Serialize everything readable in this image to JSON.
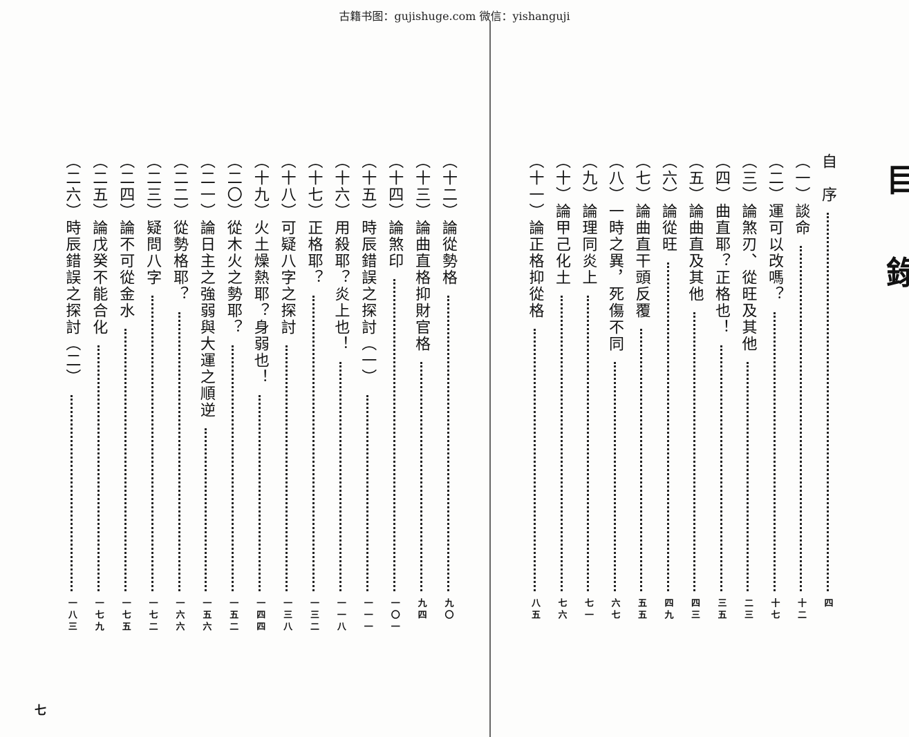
{
  "watermark": "古籍书图：gujishuge.com 微信：yishanguji",
  "heading": {
    "char1": "目",
    "char2": "錄"
  },
  "right_page": [
    {
      "title": "自　序",
      "page": "四"
    },
    {
      "title": "（一）談命",
      "page": "十二"
    },
    {
      "title": "（二）運可以改嗎？",
      "page": "十七"
    },
    {
      "title": "（三）論煞刃、從旺及其他",
      "page": "二三"
    },
    {
      "title": "（四）曲直耶？正格也！",
      "page": "三五"
    },
    {
      "title": "（五）論曲直及其他",
      "page": "四三"
    },
    {
      "title": "（六）論從旺",
      "page": "四九"
    },
    {
      "title": "（七）論曲直干頭反覆",
      "page": "五五"
    },
    {
      "title": "（八）一時之異，死傷不同",
      "page": "六七"
    },
    {
      "title": "（九）論理同炎上",
      "page": "七一"
    },
    {
      "title": "（十）論甲己化土",
      "page": "七六"
    },
    {
      "title": "（十一）論正格抑從格",
      "page": "八五"
    }
  ],
  "left_page": [
    {
      "title": "（十二）論從勢格",
      "page": "九〇"
    },
    {
      "title": "（十三）論曲直格抑財官格",
      "page": "九四"
    },
    {
      "title": "（十四）論煞印",
      "page": "一〇一"
    },
    {
      "title": "（十五）時辰錯誤之探討（一）",
      "page": "一一一"
    },
    {
      "title": "（十六）用殺耶？炎上也！",
      "page": "一一八"
    },
    {
      "title": "（十七）正格耶？",
      "page": "一三二"
    },
    {
      "title": "（十八）可疑八字之探討",
      "page": "一三八"
    },
    {
      "title": "（十九）火土燥熱耶？身弱也！",
      "page": "一四四"
    },
    {
      "title": "（二〇）從木火之勢耶？",
      "page": "一五二"
    },
    {
      "title": "（二一）論日主之強弱與大運之順逆",
      "page": "一五六"
    },
    {
      "title": "（二二）從勢格耶？",
      "page": "一六六"
    },
    {
      "title": "（二三）疑問八字",
      "page": "一七二"
    },
    {
      "title": "（二四）論不可從金水",
      "page": "一七五"
    },
    {
      "title": "（二五）論戊癸不能合化",
      "page": "一七九"
    },
    {
      "title": "（二六）時辰錯誤之探討（二）",
      "page": "一八三"
    }
  ],
  "folio": "七"
}
